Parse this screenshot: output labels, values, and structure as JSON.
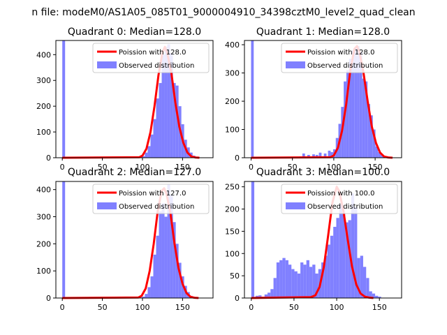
{
  "figure_title": "n file: modeM0/AS1A05_085T01_9000004910_34398cztM0_level2_quad_clean",
  "colors": {
    "poisson": "#ff0000",
    "observed": "#8080ff",
    "spine": "#000000"
  },
  "chart_data": [
    {
      "type": "bar",
      "title": "Quadrant 0: Median=128.0",
      "xlim": [
        -8,
        188
      ],
      "ylim": [
        0,
        455
      ],
      "xticks": [
        0,
        50,
        100,
        150
      ],
      "yticks": [
        0,
        100,
        200,
        300,
        400
      ],
      "legend": [
        "Poission with 128.0",
        "Observed distribution"
      ],
      "legend_placement": "upper right",
      "median": 128.0,
      "poisson_x": [
        0,
        96,
        100,
        105,
        110,
        115,
        120,
        125,
        128,
        131,
        136,
        141,
        146,
        151,
        156,
        161,
        166,
        171
      ],
      "poisson_y": [
        0,
        2,
        8,
        35,
        100,
        200,
        320,
        410,
        430,
        405,
        330,
        215,
        120,
        58,
        20,
        5,
        1,
        0
      ],
      "hist_bin_width": 3.5,
      "hist_left": [
        0,
        75,
        96,
        99.5,
        103,
        106.5,
        110,
        113.5,
        117,
        120.5,
        124,
        127.5,
        131,
        134.5,
        138,
        141.5,
        145,
        148.5,
        152,
        155.5,
        159,
        162.5,
        166
      ],
      "hist_values": [
        455,
        3,
        2,
        6,
        20,
        45,
        90,
        150,
        230,
        290,
        400,
        430,
        440,
        405,
        290,
        280,
        200,
        130,
        70,
        40,
        20,
        8,
        2
      ]
    },
    {
      "type": "bar",
      "title": "Quadrant 1: Median=128.0",
      "xlim": [
        -8,
        182
      ],
      "ylim": [
        0,
        415
      ],
      "xticks": [
        0,
        50,
        100,
        150
      ],
      "yticks": [
        0,
        100,
        200,
        300,
        400
      ],
      "legend": [
        "Poission with 128.0",
        "Observed distribution"
      ],
      "legend_placement": "upper right",
      "median": 128.0,
      "poisson_x": [
        0,
        96,
        100,
        105,
        110,
        115,
        120,
        125,
        128,
        131,
        136,
        141,
        146,
        151,
        156,
        161,
        166,
        171
      ],
      "poisson_y": [
        0,
        2,
        8,
        35,
        95,
        190,
        310,
        385,
        395,
        375,
        300,
        200,
        110,
        52,
        18,
        4,
        1,
        0
      ],
      "hist_bin_width": 3.2,
      "hist_left": [
        0,
        58,
        62,
        68,
        74,
        78,
        82,
        88,
        93,
        96,
        99.2,
        102.4,
        105.6,
        108.8,
        112,
        115.2,
        118.4,
        121.6,
        124.8,
        128,
        131.2,
        134.4,
        137.6,
        140.8,
        144,
        147.2,
        150.4,
        153.6,
        156.8
      ],
      "hist_values": [
        415,
        5,
        15,
        10,
        12,
        10,
        18,
        15,
        25,
        20,
        30,
        70,
        120,
        180,
        270,
        310,
        350,
        380,
        390,
        395,
        375,
        280,
        270,
        190,
        150,
        100,
        40,
        20,
        10
      ]
    },
    {
      "type": "bar",
      "title": "Quadrant 2: Median=127.0",
      "xlim": [
        -8,
        188
      ],
      "ylim": [
        0,
        430
      ],
      "xticks": [
        0,
        50,
        100,
        150
      ],
      "yticks": [
        0,
        100,
        200,
        300,
        400
      ],
      "legend": [
        "Poission with 127.0",
        "Observed distribution"
      ],
      "legend_placement": "upper right",
      "median": 127.0,
      "poisson_x": [
        0,
        95,
        99,
        104,
        109,
        114,
        119,
        124,
        127,
        130,
        135,
        140,
        145,
        150,
        155,
        160,
        165,
        170
      ],
      "poisson_y": [
        0,
        2,
        8,
        35,
        100,
        200,
        320,
        395,
        405,
        385,
        310,
        200,
        110,
        52,
        18,
        4,
        1,
        0
      ],
      "hist_bin_width": 3.5,
      "hist_left": [
        0,
        75,
        96,
        99.5,
        103,
        106.5,
        110,
        113.5,
        117,
        120.5,
        124,
        127.5,
        131,
        134.5,
        138,
        141.5,
        145,
        148.5,
        152,
        155.5,
        159,
        162.5
      ],
      "hist_values": [
        430,
        3,
        2,
        5,
        15,
        40,
        80,
        160,
        230,
        320,
        350,
        300,
        420,
        380,
        280,
        200,
        130,
        80,
        45,
        22,
        8,
        2
      ]
    },
    {
      "type": "bar",
      "title": "Quadrant 3: Median=100.0",
      "xlim": [
        -8,
        176
      ],
      "ylim": [
        0,
        262
      ],
      "xticks": [
        0,
        50,
        100,
        150
      ],
      "yticks": [
        0,
        50,
        100,
        150,
        200,
        250
      ],
      "legend": [
        "Poission with 100.0",
        "Observed distribution"
      ],
      "legend_placement": "upper right",
      "median": 100.0,
      "poisson_x": [
        0,
        70,
        75,
        80,
        85,
        90,
        95,
        100,
        103,
        108,
        113,
        118,
        123,
        128,
        133,
        138,
        143
      ],
      "poisson_y": [
        0,
        2,
        6,
        25,
        70,
        140,
        215,
        250,
        240,
        195,
        130,
        70,
        30,
        10,
        3,
        1,
        0
      ],
      "hist_bin_width": 3.5,
      "hist_left": [
        0,
        5,
        8.5,
        12,
        15.5,
        19,
        22.5,
        26,
        29.5,
        33,
        36.5,
        40,
        43.5,
        47,
        50.5,
        54,
        57.5,
        61,
        64.5,
        68,
        71.5,
        75,
        78.5,
        82,
        85.5,
        89,
        92.5,
        96,
        99.5,
        103,
        106.5,
        110,
        113.5,
        117,
        120.5,
        124,
        127.5,
        131,
        134.5,
        138,
        141.5,
        145,
        148.5
      ],
      "hist_values": [
        262,
        5,
        6,
        3,
        8,
        12,
        20,
        45,
        80,
        85,
        90,
        85,
        75,
        65,
        60,
        55,
        80,
        75,
        85,
        70,
        75,
        55,
        65,
        80,
        95,
        120,
        140,
        160,
        180,
        210,
        190,
        170,
        175,
        235,
        205,
        90,
        95,
        70,
        45,
        15,
        10,
        5,
        3
      ]
    }
  ]
}
